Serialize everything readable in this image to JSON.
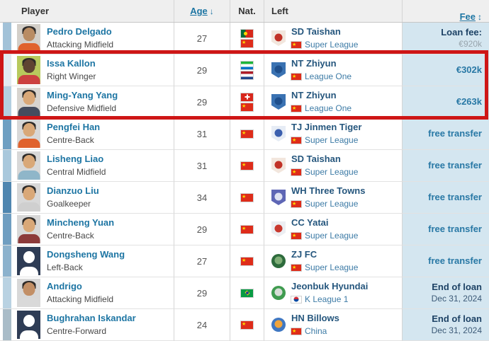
{
  "table": {
    "header": {
      "player": "Player",
      "age": "Age",
      "age_sort_icon": "↓",
      "nat": "Nat.",
      "left": "Left",
      "fee": "Fee",
      "fee_sort_icon": "↕"
    },
    "rows": [
      {
        "player": {
          "name": "Pedro Delgado",
          "position": "Attacking Midfield"
        },
        "avatar": {
          "type": "photo",
          "bg": "#d3cfc9",
          "skin": "#b98c63",
          "shirt": "#e0622d"
        },
        "age": "27",
        "nationalities": [
          "portugal",
          "china"
        ],
        "left": {
          "club": "SD Taishan",
          "badge": {
            "shape": "shield",
            "fill": "#f2e6dd",
            "emblem": "#c13227"
          },
          "league": "Super League",
          "league_flag": "china"
        },
        "fee": {
          "style": "loan",
          "main": "Loan fee:",
          "sub": "€920k"
        },
        "stripe_color": "#a2c2d8"
      },
      {
        "player": {
          "name": "Issa Kallon",
          "position": "Right Winger"
        },
        "avatar": {
          "type": "photo",
          "bg": "#b8c95d",
          "skin": "#5f4332",
          "shirt": "#cc4040"
        },
        "age": "29",
        "nationalities": [
          "sierra-leone",
          "netherlands"
        ],
        "left": {
          "club": "NT Zhiyun",
          "badge": {
            "shape": "shield",
            "fill": "#3a72b2",
            "emblem": "#1f4f8c"
          },
          "league": "League One",
          "league_flag": "china"
        },
        "fee": {
          "style": "value",
          "main": "€302k",
          "sub": ""
        },
        "stripe_color": "#e2ebf1"
      },
      {
        "player": {
          "name": "Ming-Yang Yang",
          "position": "Defensive Midfield"
        },
        "avatar": {
          "type": "photo",
          "bg": "#d8d4cf",
          "skin": "#d9a878",
          "shirt": "#444c5e"
        },
        "age": "29",
        "nationalities": [
          "switzerland",
          "china"
        ],
        "left": {
          "club": "NT Zhiyun",
          "badge": {
            "shape": "shield",
            "fill": "#3a72b2",
            "emblem": "#1f4f8c"
          },
          "league": "League One",
          "league_flag": "china"
        },
        "fee": {
          "style": "value",
          "main": "€263k",
          "sub": ""
        },
        "stripe_color": "#b4cfe0"
      },
      {
        "player": {
          "name": "Pengfei Han",
          "position": "Centre-Back"
        },
        "avatar": {
          "type": "photo",
          "bg": "#d8d8d8",
          "skin": "#d9a878",
          "shirt": "#e0622d"
        },
        "age": "31",
        "nationalities": [
          "china"
        ],
        "left": {
          "club": "TJ Jinmen Tiger",
          "badge": {
            "shape": "shield",
            "fill": "#e6ecf5",
            "emblem": "#3b5fae"
          },
          "league": "Super League",
          "league_flag": "china"
        },
        "fee": {
          "style": "value",
          "main": "free transfer",
          "sub": ""
        },
        "stripe_color": "#6e9fc2"
      },
      {
        "player": {
          "name": "Lisheng Liao",
          "position": "Central Midfield"
        },
        "avatar": {
          "type": "photo",
          "bg": "#d8d8d8",
          "skin": "#d9a878",
          "shirt": "#8fb6c9"
        },
        "age": "31",
        "nationalities": [
          "china"
        ],
        "left": {
          "club": "SD Taishan",
          "badge": {
            "shape": "shield",
            "fill": "#f2e6dd",
            "emblem": "#c13227"
          },
          "league": "Super League",
          "league_flag": "china"
        },
        "fee": {
          "style": "value",
          "main": "free transfer",
          "sub": ""
        },
        "stripe_color": "#a9c8dc"
      },
      {
        "player": {
          "name": "Dianzuo Liu",
          "position": "Goalkeeper"
        },
        "avatar": {
          "type": "photo",
          "bg": "#d8d8d8",
          "skin": "#d9a878",
          "shirt": "#cfcfcf"
        },
        "age": "34",
        "nationalities": [
          "china"
        ],
        "left": {
          "club": "WH Three Towns",
          "badge": {
            "shape": "shield",
            "fill": "#5e66b5",
            "emblem": "#dfe2f2"
          },
          "league": "Super League",
          "league_flag": "china"
        },
        "fee": {
          "style": "value",
          "main": "free transfer",
          "sub": ""
        },
        "stripe_color": "#4f86b0"
      },
      {
        "player": {
          "name": "Mincheng Yuan",
          "position": "Centre-Back"
        },
        "avatar": {
          "type": "photo",
          "bg": "#d8d8d8",
          "skin": "#d9a878",
          "shirt": "#8c3a3a"
        },
        "age": "29",
        "nationalities": [
          "china"
        ],
        "left": {
          "club": "CC Yatai",
          "badge": {
            "shape": "shield",
            "fill": "#eceef2",
            "emblem": "#c8382e"
          },
          "league": "Super League",
          "league_flag": "china"
        },
        "fee": {
          "style": "value",
          "main": "free transfer",
          "sub": ""
        },
        "stripe_color": "#6f9ec1"
      },
      {
        "player": {
          "name": "Dongsheng Wang",
          "position": "Left-Back"
        },
        "avatar": {
          "type": "silhouette",
          "bg": "#2e3c55",
          "skin": "",
          "shirt": ""
        },
        "age": "27",
        "nationalities": [
          "china"
        ],
        "left": {
          "club": "ZJ FC",
          "badge": {
            "shape": "circle",
            "fill": "#2d6b3c",
            "emblem": "#7fae77"
          },
          "league": "Super League",
          "league_flag": "china"
        },
        "fee": {
          "style": "value",
          "main": "free transfer",
          "sub": ""
        },
        "stripe_color": "#8cb2cd"
      },
      {
        "player": {
          "name": "Andrigo",
          "position": "Attacking Midfield"
        },
        "avatar": {
          "type": "photo",
          "bg": "#d8d8d8",
          "skin": "#c28f66",
          "shirt": "#d9d9d9"
        },
        "age": "29",
        "nationalities": [
          "brazil"
        ],
        "left": {
          "club": "Jeonbuk Hyundai",
          "badge": {
            "shape": "circle",
            "fill": "#3f9b4f",
            "emblem": "#d7ded7"
          },
          "league": "K League 1",
          "league_flag": "south-korea"
        },
        "fee": {
          "style": "endloan",
          "main": "End of loan",
          "sub": "Dec 31, 2024"
        },
        "stripe_color": "#b9d2e2"
      },
      {
        "player": {
          "name": "Bughrahan Iskandar",
          "position": "Centre-Forward"
        },
        "avatar": {
          "type": "silhouette",
          "bg": "#2e3c55",
          "skin": "",
          "shirt": ""
        },
        "age": "24",
        "nationalities": [
          "china"
        ],
        "left": {
          "club": "HN Billows",
          "badge": {
            "shape": "circle",
            "fill": "#3f77c2",
            "emblem": "#f0a43c"
          },
          "league": "China",
          "league_flag": "china"
        },
        "fee": {
          "style": "endloan",
          "main": "End of loan",
          "sub": "Dec 31, 2024"
        },
        "stripe_color": "#a9bcc8"
      }
    ]
  },
  "highlight": {
    "color": "#ce1616",
    "row_indexes": [
      1,
      2
    ]
  },
  "colors": {
    "link_blue": "#1d75a3",
    "club_link": "#25567d",
    "league_link": "#3d7ba6",
    "fee_value": "#2878a5",
    "fee_dark": "#1d4265",
    "fee_cell_bg": "#d4e6f0",
    "header_bg": "#efefef",
    "silhouette_bg": "#2e3c55"
  }
}
